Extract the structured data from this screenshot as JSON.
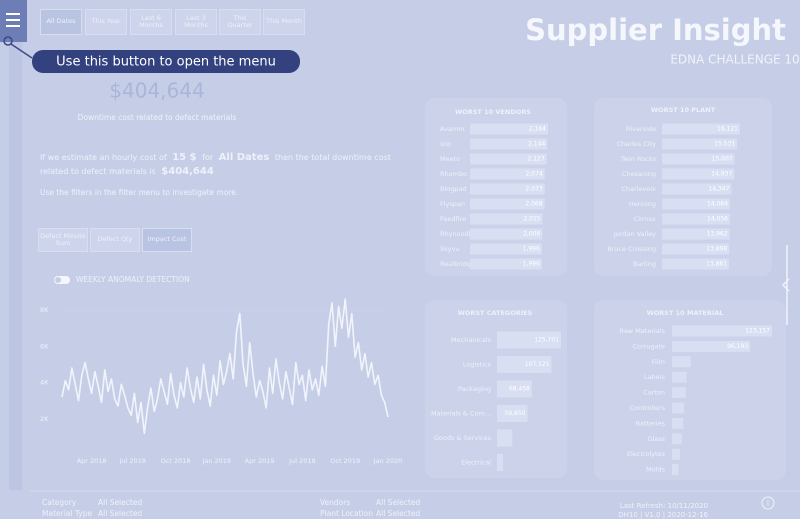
{
  "header": {
    "title": "Supplier Insight",
    "subtitle": "EDNA CHALLENGE 10"
  },
  "date_filters": [
    "All Dates",
    "This Year",
    "Last 6 Months",
    "Last 3 Months",
    "This Quarter",
    "This Month"
  ],
  "menu_tooltip": "Use this button to open the menu",
  "kpi": {
    "value": "$404,644",
    "caption": "Downtime cost related to defect materials"
  },
  "narrative": {
    "text1": "If we estimate an hourly cost of",
    "cost": "15 $",
    "text2": "for",
    "period": "All Dates",
    "text3": "then the total downtime cost",
    "text4": "related to defect materials is",
    "total": "$404,644",
    "hint": "Use the filters in the filter menu to investigate more."
  },
  "measure_buttons": [
    "Defect Minute Sum",
    "Defect Qty",
    "Impact Cost"
  ],
  "toggle_label": "WEEKLY ANOMALY DETECTION",
  "chart_data": [
    {
      "type": "line",
      "color": "#f2f4fb",
      "values": [
        3200,
        4100,
        3600,
        4800,
        3900,
        3000,
        4400,
        5100,
        4200,
        3400,
        4600,
        3800,
        2900,
        4700,
        3500,
        4200,
        3100,
        2700,
        3900,
        3300,
        2600,
        2200,
        3400,
        1800,
        2900,
        1200,
        2600,
        3700,
        2400,
        3100,
        4200,
        3500,
        2800,
        4500,
        3300,
        2600,
        4000,
        3200,
        4800,
        3700,
        2900,
        4300,
        3100,
        5000,
        3600,
        2700,
        4400,
        3300,
        5200,
        3900,
        4600,
        5600,
        4200,
        6800,
        7800,
        5000,
        3800,
        6200,
        4500,
        3200,
        4100,
        3500,
        2600,
        4800,
        3400,
        5300,
        4000,
        3100,
        4600,
        3700,
        2800,
        5100,
        3900,
        4400,
        3000,
        4700,
        3600,
        4200,
        3300,
        4900,
        3800,
        7200,
        8400,
        6000,
        8200,
        7000,
        8600,
        6500,
        7800,
        5400,
        6200,
        4700,
        5600,
        4300,
        5100,
        3900,
        4400,
        3300,
        2900,
        2100
      ],
      "xlim": [
        0,
        99
      ],
      "xticks": [
        {
          "value": 9,
          "label": "Apr 2018"
        },
        {
          "value": 21.5,
          "label": "Jul 2018"
        },
        {
          "value": 34.5,
          "label": "Oct 2018"
        },
        {
          "value": 47,
          "label": "Jan 2019"
        },
        {
          "value": 60,
          "label": "Apr 2019"
        },
        {
          "value": 73,
          "label": "Jul 2019"
        },
        {
          "value": 86,
          "label": "Oct 2019"
        },
        {
          "value": 99,
          "label": "Jan 2020"
        }
      ],
      "ylim": [
        0,
        9000
      ],
      "yticks": [
        {
          "value": 2000,
          "label": "2K"
        },
        {
          "value": 4000,
          "label": "4K"
        },
        {
          "value": 6000,
          "label": "6K"
        },
        {
          "value": 8000,
          "label": "8K"
        }
      ]
    },
    {
      "type": "hbar",
      "title": "WORST 10 VENDORS",
      "color": "#d9dff2",
      "categories": [
        "Avamm",
        "Izio",
        "Meeto",
        "Rhombo",
        "Blogpad",
        "Flyspan",
        "Feedfire",
        "Rhynoodle",
        "Skyvu",
        "Realbridge"
      ],
      "values": [
        2164,
        2144,
        2127,
        2074,
        2073,
        2068,
        2015,
        2006,
        1996,
        1996
      ],
      "value_labels": [
        "2,164",
        "2,144",
        "2,127",
        "2,074",
        "2,073",
        "2,068",
        "2,015",
        "2,006",
        "1,996",
        "1,996"
      ]
    },
    {
      "type": "hbar",
      "title": "WORST 10 PLANT",
      "color": "#d9dff2",
      "categories": [
        "Riverside",
        "Charles City",
        "Twin Rocks",
        "Chesaning",
        "Charlevoix",
        "Henning",
        "Climax",
        "Jordan Valley",
        "Bruce Crossing",
        "Barling"
      ],
      "values": [
        16121,
        15531,
        15007,
        14937,
        14347,
        14064,
        14056,
        13962,
        13898,
        13861
      ],
      "value_labels": [
        "16,121",
        "15,531",
        "15,007",
        "14,937",
        "14,347",
        "14,064",
        "14,056",
        "13,962",
        "13,898",
        "13,861"
      ]
    },
    {
      "type": "hbar",
      "title": "WORST CATEGORIES",
      "color": "#d9dff2",
      "categories": [
        "Mechanicals",
        "Logistics",
        "Packaging",
        "Materials & Com...",
        "Goods & Services",
        "Electrical"
      ],
      "values": [
        125701,
        107121,
        68458,
        59850,
        30000,
        12000
      ],
      "value_labels": [
        "125,701",
        "107,121",
        "68,458",
        "59,850",
        null,
        null
      ]
    },
    {
      "type": "hbar",
      "title": "WORST 10 MATERIAL",
      "color": "#d9dff2",
      "categories": [
        "Raw Materials",
        "Corrugate",
        "Film",
        "Labels",
        "Carton",
        "Controllers",
        "Batteries",
        "Glass",
        "Electrolytes",
        "Molds"
      ],
      "values": [
        123157,
        96193,
        23000,
        18000,
        17000,
        15000,
        14000,
        12000,
        10000,
        8000
      ],
      "value_labels": [
        "123,157",
        "96,193",
        null,
        null,
        null,
        null,
        null,
        null,
        null,
        null
      ]
    }
  ],
  "footer": {
    "filters": [
      {
        "label": "Category",
        "value": "All Selected"
      },
      {
        "label": "Material Type",
        "value": "All Selected"
      },
      {
        "label": "Vendors",
        "value": "All Selected"
      },
      {
        "label": "Plant Location",
        "value": "All Selected"
      }
    ],
    "refresh": "Last Refresh: 10/11/2020",
    "version": "DH10 | V1.0 | 2020-12-16"
  }
}
